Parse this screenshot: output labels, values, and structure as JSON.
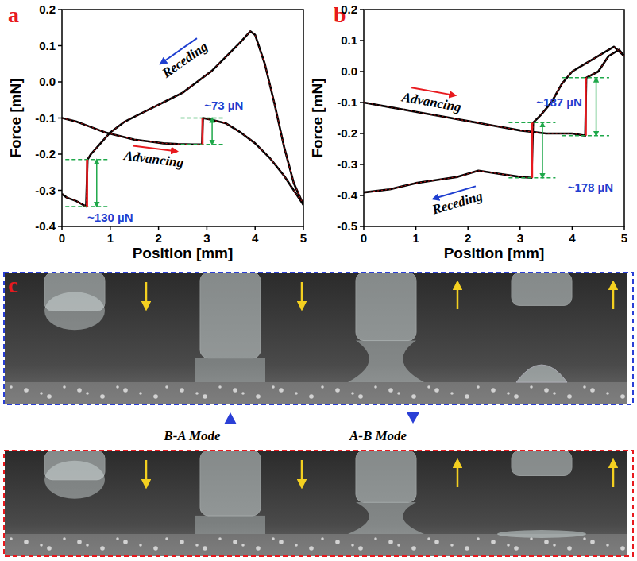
{
  "chart_data": [
    {
      "type": "line",
      "x_label": "Position [mm]",
      "y_label": "Force [mN]",
      "xlim": [
        0,
        5
      ],
      "xticks": [
        0,
        1,
        2,
        3,
        4,
        5
      ],
      "ylim": [
        -0.4,
        0.2
      ],
      "yticks": [
        -0.4,
        -0.3,
        -0.2,
        -0.1,
        {
          "value": 0,
          "label": "0.0"
        },
        0.1,
        0.2
      ],
      "series": [
        {
          "color": "#000000",
          "x": [
            0,
            0.3,
            0.6,
            0.9,
            1.2,
            1.5,
            1.8,
            2.1,
            2.4,
            2.7,
            2.9,
            2.92,
            3.1,
            3.4,
            3.7,
            4.0,
            4.3,
            4.6,
            4.8,
            5.0
          ],
          "values": [
            -0.1,
            -0.11,
            -0.125,
            -0.14,
            -0.15,
            -0.16,
            -0.165,
            -0.17,
            -0.172,
            -0.173,
            -0.173,
            -0.1,
            -0.105,
            -0.115,
            -0.14,
            -0.17,
            -0.21,
            -0.26,
            -0.3,
            -0.34
          ]
        },
        {
          "color": "#000000",
          "x": [
            5.0,
            4.8,
            4.6,
            4.4,
            4.2,
            4.0,
            3.9,
            3.7,
            3.4,
            3.1,
            2.8,
            2.5,
            2.2,
            1.9,
            1.6,
            1.3,
            1.0,
            0.8,
            0.6,
            0.53,
            0.5,
            0.3,
            0.1,
            0
          ],
          "values": [
            -0.34,
            -0.28,
            -0.18,
            -0.06,
            0.05,
            0.13,
            0.14,
            0.11,
            0.07,
            0.03,
            0.0,
            -0.03,
            -0.05,
            -0.07,
            -0.09,
            -0.11,
            -0.14,
            -0.17,
            -0.2,
            -0.215,
            -0.345,
            -0.33,
            -0.32,
            -0.31
          ]
        }
      ],
      "jumps": [
        {
          "x": 0.52,
          "from": -0.345,
          "to": -0.215,
          "label": "~130 µN",
          "label_x": 1.0,
          "label_y": -0.375
        },
        {
          "x": 2.91,
          "from": -0.173,
          "to": -0.1,
          "label": "~73 µN",
          "label_x": 3.35,
          "label_y": -0.065
        }
      ],
      "annotations": [
        {
          "text": "Advancing",
          "x": 1.9,
          "y": -0.215,
          "series": 0,
          "color": "#e8191e"
        },
        {
          "text": "Receding",
          "x": 2.55,
          "y": 0.06,
          "series": 1,
          "color": "#1f3fd0"
        }
      ]
    },
    {
      "type": "line",
      "x_label": "Position [mm]",
      "y_label": "Force [mN]",
      "xlim": [
        0,
        5
      ],
      "xticks": [
        0,
        1,
        2,
        3,
        4,
        5
      ],
      "ylim": [
        -0.5,
        0.2
      ],
      "yticks": [
        -0.5,
        -0.4,
        -0.3,
        -0.2,
        -0.1,
        {
          "value": 0,
          "label": "0.0"
        },
        0.1,
        0.2
      ],
      "series": [
        {
          "color": "#000000",
          "x": [
            0,
            0.5,
            1.0,
            1.5,
            2.0,
            2.5,
            3.0,
            3.5,
            4.0,
            4.25,
            4.27,
            4.5,
            4.7,
            4.9,
            5.0
          ],
          "values": [
            -0.1,
            -0.115,
            -0.13,
            -0.145,
            -0.16,
            -0.175,
            -0.19,
            -0.2,
            -0.2,
            -0.207,
            -0.02,
            0.0,
            0.05,
            0.07,
            0.05
          ]
        },
        {
          "color": "#000000",
          "x": [
            5.0,
            4.8,
            4.6,
            4.4,
            4.2,
            4.0,
            3.8,
            3.6,
            3.4,
            3.25,
            3.22,
            3.0,
            2.6,
            2.2,
            1.8,
            1.4,
            1.0,
            0.5,
            0
          ],
          "values": [
            0.05,
            0.08,
            0.06,
            0.04,
            0.02,
            0.0,
            -0.04,
            -0.1,
            -0.14,
            -0.165,
            -0.343,
            -0.34,
            -0.33,
            -0.32,
            -0.34,
            -0.35,
            -0.36,
            -0.38,
            -0.39
          ]
        }
      ],
      "jumps": [
        {
          "x": 4.26,
          "from": -0.207,
          "to": -0.02,
          "label": "~187 µN",
          "label_x": 3.75,
          "label_y": -0.1
        },
        {
          "x": 3.23,
          "from": -0.343,
          "to": -0.165,
          "label": "~178 µN",
          "label_x": 4.35,
          "label_y": -0.375
        }
      ],
      "annotations": [
        {
          "text": "Advancing",
          "x": 1.3,
          "y": -0.1,
          "series": 0,
          "color": "#e8191e"
        },
        {
          "text": "Receding",
          "x": 1.8,
          "y": -0.425,
          "series": 1,
          "color": "#1f3fd0"
        }
      ]
    }
  ],
  "figure": {
    "panel_letters": [
      "a",
      "b",
      "c"
    ],
    "modes": [
      "B-A Mode",
      "A-B Mode"
    ]
  }
}
